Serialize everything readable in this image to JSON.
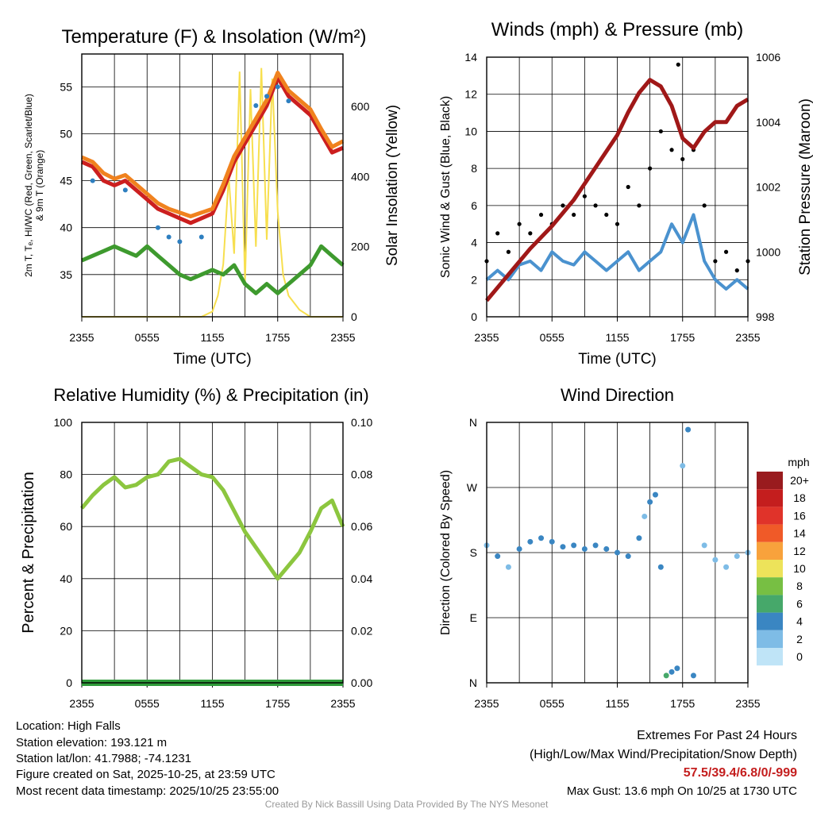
{
  "colors": {
    "temperature": "#cc1f1f",
    "heat_index": "#2a9a3a",
    "dewpoint": "#3e9a2e",
    "nine_m_temp": "#f0821e",
    "wind_chill": "#2e7fc0",
    "solar": "#f7df4f",
    "wind": "#4a92cf",
    "gust": "#000000",
    "pressure": "#a01818",
    "rh": "#8cc63f",
    "precip": "#2e9a3a",
    "credit": "#9a9a9a",
    "extremes_values": "#c41e1e"
  },
  "chart_data": [
    {
      "id": "temp",
      "type": "line",
      "title": "Temperature (F) & Insolation (W/m²)",
      "xlabel": "Time (UTC)",
      "ylabel_lines": [
        "2m T, Tₑ, HI/WC (Red, Green, Scarlet/Blue)",
        "& 9m T (Orange)"
      ],
      "y2label": "Solar Insolation (Yellow)",
      "x_ticks": [
        "2355",
        "0555",
        "1155",
        "1755",
        "2355"
      ],
      "ylim": [
        30.5,
        58.5
      ],
      "y_ticks": [
        35,
        40,
        45,
        50,
        55
      ],
      "y2lim": [
        0,
        750
      ],
      "y2_ticks": [
        0,
        200,
        400,
        600
      ],
      "series": [
        {
          "name": "2m Temperature",
          "color_key": "temperature",
          "points": [
            [
              0,
              47
            ],
            [
              1,
              46.5
            ],
            [
              2,
              45
            ],
            [
              3,
              44.5
            ],
            [
              4,
              45
            ],
            [
              5,
              44
            ],
            [
              6,
              43
            ],
            [
              7,
              42
            ],
            [
              8,
              41.5
            ],
            [
              9,
              41
            ],
            [
              10,
              40.5
            ],
            [
              11,
              41
            ],
            [
              12,
              41.5
            ],
            [
              13,
              44
            ],
            [
              14,
              47
            ],
            [
              15,
              49
            ],
            [
              16,
              51
            ],
            [
              17,
              53
            ],
            [
              18,
              56
            ],
            [
              19,
              54
            ],
            [
              20,
              53
            ],
            [
              21,
              52
            ],
            [
              22,
              50
            ],
            [
              23,
              48
            ],
            [
              24,
              48.5
            ]
          ]
        },
        {
          "name": "9m Temperature",
          "color_key": "nine_m_temp",
          "points": [
            [
              0,
              47.5
            ],
            [
              1,
              47
            ],
            [
              2,
              45.8
            ],
            [
              3,
              45.2
            ],
            [
              4,
              45.6
            ],
            [
              5,
              44.6
            ],
            [
              6,
              43.6
            ],
            [
              7,
              42.6
            ],
            [
              8,
              42
            ],
            [
              9,
              41.6
            ],
            [
              10,
              41.2
            ],
            [
              11,
              41.6
            ],
            [
              12,
              42
            ],
            [
              13,
              44.6
            ],
            [
              14,
              47.6
            ],
            [
              15,
              49.6
            ],
            [
              16,
              51.6
            ],
            [
              17,
              53.6
            ],
            [
              18,
              56.5
            ],
            [
              19,
              54.6
            ],
            [
              20,
              53.6
            ],
            [
              21,
              52.6
            ],
            [
              22,
              50.5
            ],
            [
              23,
              48.6
            ],
            [
              24,
              49.2
            ]
          ]
        },
        {
          "name": "Dew Point",
          "color_key": "dewpoint",
          "points": [
            [
              0,
              36.5
            ],
            [
              1,
              37
            ],
            [
              2,
              37.5
            ],
            [
              3,
              38
            ],
            [
              4,
              37.5
            ],
            [
              5,
              37
            ],
            [
              6,
              38
            ],
            [
              7,
              37
            ],
            [
              8,
              36
            ],
            [
              9,
              35
            ],
            [
              10,
              34.5
            ],
            [
              11,
              35
            ],
            [
              12,
              35.5
            ],
            [
              13,
              35
            ],
            [
              14,
              36
            ],
            [
              15,
              34
            ],
            [
              16,
              33
            ],
            [
              17,
              34
            ],
            [
              18,
              33
            ],
            [
              19,
              34
            ],
            [
              20,
              35
            ],
            [
              21,
              36
            ],
            [
              22,
              38
            ],
            [
              23,
              37
            ],
            [
              24,
              36
            ]
          ]
        },
        {
          "name": "Wind Chill",
          "color_key": "wind_chill",
          "style": "dots",
          "points": [
            [
              1,
              45
            ],
            [
              4,
              44
            ],
            [
              7,
              40
            ],
            [
              8,
              39
            ],
            [
              9,
              38.5
            ],
            [
              11,
              39
            ],
            [
              16,
              53
            ],
            [
              17,
              54
            ],
            [
              18,
              55
            ],
            [
              19,
              53.5
            ]
          ]
        }
      ],
      "solar": [
        [
          0,
          0
        ],
        [
          11,
          0
        ],
        [
          12,
          15
        ],
        [
          12.5,
          60
        ],
        [
          13,
          150
        ],
        [
          13.5,
          400
        ],
        [
          14,
          180
        ],
        [
          14.5,
          700
        ],
        [
          15,
          100
        ],
        [
          15.5,
          650
        ],
        [
          16,
          200
        ],
        [
          16.5,
          710
        ],
        [
          17,
          220
        ],
        [
          17.5,
          680
        ],
        [
          18,
          300
        ],
        [
          18.5,
          120
        ],
        [
          19,
          60
        ],
        [
          20,
          20
        ],
        [
          21,
          0
        ],
        [
          24,
          0
        ]
      ]
    },
    {
      "id": "wind",
      "type": "line",
      "title": "Winds (mph) & Pressure (mb)",
      "xlabel": "Time (UTC)",
      "ylabel": "Sonic Wind & Gust (Blue, Black)",
      "y2label": "Station Pressure (Maroon)",
      "x_ticks": [
        "2355",
        "0555",
        "1155",
        "1755",
        "2355"
      ],
      "ylim": [
        0,
        14
      ],
      "y_ticks": [
        0,
        2,
        4,
        6,
        8,
        10,
        12,
        14
      ],
      "y2lim": [
        998,
        1006
      ],
      "y2_ticks": [
        998,
        1000,
        1002,
        1004,
        1006
      ],
      "series": [
        {
          "name": "Sonic Wind",
          "color_key": "wind",
          "points": [
            [
              0,
              2
            ],
            [
              1,
              2.5
            ],
            [
              2,
              2
            ],
            [
              3,
              2.8
            ],
            [
              4,
              3
            ],
            [
              5,
              2.5
            ],
            [
              6,
              3.5
            ],
            [
              7,
              3
            ],
            [
              8,
              2.8
            ],
            [
              9,
              3.5
            ],
            [
              10,
              3
            ],
            [
              11,
              2.5
            ],
            [
              12,
              3
            ],
            [
              13,
              3.5
            ],
            [
              14,
              2.5
            ],
            [
              15,
              3
            ],
            [
              16,
              3.5
            ],
            [
              17,
              5
            ],
            [
              18,
              4
            ],
            [
              19,
              5.5
            ],
            [
              20,
              3
            ],
            [
              21,
              2
            ],
            [
              22,
              1.5
            ],
            [
              23,
              2
            ],
            [
              24,
              1.5
            ]
          ]
        },
        {
          "name": "Gust",
          "color_key": "gust",
          "style": "dots",
          "points": [
            [
              0,
              3
            ],
            [
              1,
              4.5
            ],
            [
              2,
              3.5
            ],
            [
              3,
              5
            ],
            [
              4,
              4.5
            ],
            [
              5,
              5.5
            ],
            [
              6,
              5
            ],
            [
              7,
              6
            ],
            [
              8,
              5.5
            ],
            [
              9,
              6.5
            ],
            [
              10,
              6
            ],
            [
              11,
              5.5
            ],
            [
              12,
              5
            ],
            [
              13,
              7
            ],
            [
              14,
              6
            ],
            [
              15,
              8
            ],
            [
              16,
              10
            ],
            [
              17,
              9
            ],
            [
              17.6,
              13.6
            ],
            [
              18,
              8.5
            ],
            [
              19,
              9
            ],
            [
              20,
              6
            ],
            [
              21,
              3
            ],
            [
              22,
              3.5
            ],
            [
              23,
              2.5
            ],
            [
              24,
              3
            ]
          ]
        },
        {
          "name": "Station Pressure",
          "color_key": "pressure",
          "axis": "y2",
          "points": [
            [
              0,
              998.5
            ],
            [
              2,
              999.3
            ],
            [
              4,
              1000.1
            ],
            [
              6,
              1000.8
            ],
            [
              8,
              1001.6
            ],
            [
              10,
              1002.6
            ],
            [
              12,
              1003.6
            ],
            [
              13,
              1004.3
            ],
            [
              14,
              1004.9
            ],
            [
              15,
              1005.3
            ],
            [
              16,
              1005.1
            ],
            [
              17,
              1004.5
            ],
            [
              18,
              1003.5
            ],
            [
              19,
              1003.2
            ],
            [
              20,
              1003.7
            ],
            [
              21,
              1004
            ],
            [
              22,
              1004
            ],
            [
              23,
              1004.5
            ],
            [
              24,
              1004.7
            ]
          ]
        }
      ]
    },
    {
      "id": "rh",
      "type": "line",
      "title": "Relative Humidity (%) & Precipitation (in)",
      "xlabel": "",
      "ylabel": "Percent & Precipitation",
      "x_ticks": [
        "2355",
        "0555",
        "1155",
        "1755",
        "2355"
      ],
      "ylim": [
        0,
        100
      ],
      "y_ticks": [
        0,
        20,
        40,
        60,
        80,
        100
      ],
      "y2lim": [
        0,
        0.1
      ],
      "y2_ticks": [
        "0.00",
        "0.02",
        "0.04",
        "0.06",
        "0.08",
        "0.10"
      ],
      "series": [
        {
          "name": "Relative Humidity",
          "color_key": "rh",
          "points": [
            [
              0,
              67
            ],
            [
              1,
              72
            ],
            [
              2,
              76
            ],
            [
              3,
              79
            ],
            [
              4,
              75
            ],
            [
              5,
              76
            ],
            [
              6,
              79
            ],
            [
              7,
              80
            ],
            [
              8,
              85
            ],
            [
              9,
              86
            ],
            [
              10,
              83
            ],
            [
              11,
              80
            ],
            [
              12,
              79
            ],
            [
              13,
              74
            ],
            [
              14,
              66
            ],
            [
              15,
              58
            ],
            [
              16,
              52
            ],
            [
              17,
              46
            ],
            [
              18,
              40
            ],
            [
              19,
              45
            ],
            [
              20,
              50
            ],
            [
              21,
              58
            ],
            [
              22,
              67
            ],
            [
              23,
              70
            ],
            [
              24,
              60
            ]
          ]
        },
        {
          "name": "Precipitation",
          "color_key": "precip",
          "points": [
            [
              0,
              0
            ],
            [
              24,
              0
            ]
          ]
        }
      ]
    },
    {
      "id": "dir",
      "type": "scatter",
      "title": "Wind Direction",
      "xlabel": "",
      "ylabel": "Direction (Colored By Speed)",
      "x_ticks": [
        "2355",
        "0555",
        "1155",
        "1755",
        "2355"
      ],
      "ylim": [
        0,
        360
      ],
      "y_ticks": [
        [
          0,
          "N"
        ],
        [
          90,
          "E"
        ],
        [
          180,
          "S"
        ],
        [
          270,
          "W"
        ],
        [
          360,
          "N"
        ]
      ],
      "points": [
        [
          0,
          190,
          2
        ],
        [
          1,
          175,
          3
        ],
        [
          2,
          160,
          2
        ],
        [
          3,
          185,
          3
        ],
        [
          4,
          195,
          4
        ],
        [
          5,
          200,
          3
        ],
        [
          6,
          195,
          4
        ],
        [
          7,
          188,
          3
        ],
        [
          8,
          190,
          4
        ],
        [
          9,
          185,
          3
        ],
        [
          10,
          190,
          3
        ],
        [
          11,
          185,
          4
        ],
        [
          12,
          180,
          3
        ],
        [
          13,
          175,
          3
        ],
        [
          14,
          200,
          3
        ],
        [
          14.5,
          230,
          2
        ],
        [
          15,
          250,
          3
        ],
        [
          15.5,
          260,
          4
        ],
        [
          16,
          160,
          3
        ],
        [
          16.5,
          10,
          5
        ],
        [
          17,
          15,
          4
        ],
        [
          17.5,
          20,
          3
        ],
        [
          18,
          300,
          2
        ],
        [
          18.5,
          350,
          3
        ],
        [
          19,
          10,
          3
        ],
        [
          20,
          190,
          2
        ],
        [
          21,
          170,
          2
        ],
        [
          22,
          160,
          2
        ],
        [
          23,
          175,
          1
        ],
        [
          24,
          180,
          2
        ]
      ],
      "legend": {
        "title": "mph",
        "labels": [
          "20+",
          "18",
          "16",
          "14",
          "12",
          "10",
          "8",
          "6",
          "4",
          "2",
          "0"
        ],
        "colors": [
          "#991b1e",
          "#c41e1e",
          "#e0332a",
          "#f05a28",
          "#f8a23c",
          "#ede35a",
          "#77bf43",
          "#46a86a",
          "#3a86c2",
          "#7ebce6",
          "#bfe4f7"
        ]
      }
    }
  ],
  "info": {
    "location": "Location: High Falls",
    "elevation": "Station elevation: 193.121 m",
    "latlon": "Station lat/lon: 41.7988; -74.1231",
    "created": "Figure created on Sat, 2025-10-25, at 23:59 UTC",
    "recent": "Most recent data timestamp: 2025/10/25 23:55:00"
  },
  "extremes": {
    "title": "Extremes For Past 24 Hours",
    "subtitle": "(High/Low/Max Wind/Precipitation/Snow Depth)",
    "values": "57.5/39.4/6.8/0/-999",
    "max_gust": "Max Gust: 13.6 mph On 10/25 at 1730 UTC"
  },
  "credit": "Created By Nick Bassill Using Data Provided By The NYS Mesonet"
}
